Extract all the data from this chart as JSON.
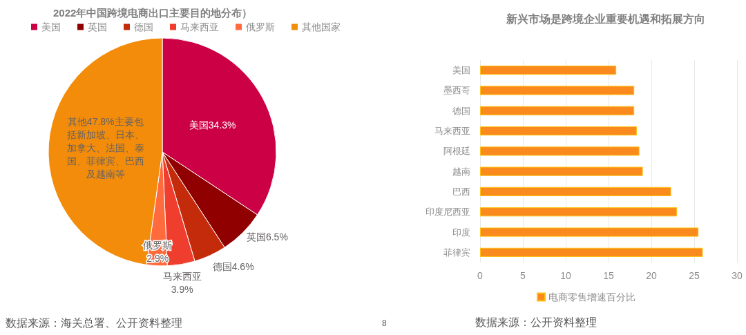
{
  "chart_data": [
    {
      "type": "pie",
      "title": "2022年中国跨境电商出口主要目的地分布）",
      "categories": [
        "美国",
        "英国",
        "德国",
        "马来西亚",
        "俄罗斯",
        "其他国家"
      ],
      "values": [
        34.3,
        6.5,
        4.6,
        3.9,
        2.9,
        47.8
      ],
      "colors": [
        "#cc0044",
        "#900000",
        "#c42b0b",
        "#ef3e2e",
        "#ff6b3d",
        "#f28c0a"
      ],
      "value_labels": [
        "美国34.3%",
        "英国6.5%",
        "德国4.6%",
        "马来西亚3.9%",
        "俄罗斯2.9%",
        "其他47.8%主要包括新加坡、日本、加拿大、法国、泰国、菲律宾、巴西及越南等"
      ],
      "legend": "top",
      "annotations": [
        "数据来源：海关总署、公开资料整理",
        "8"
      ]
    },
    {
      "type": "bar",
      "orientation": "horizontal",
      "title": "新兴市场是跨境企业重要机遇和拓展方向",
      "categories": [
        "美国",
        "墨西哥",
        "德国",
        "马来西亚",
        "阿根廷",
        "越南",
        "巴西",
        "印度尼西亚",
        "印度",
        "菲律宾"
      ],
      "series": [
        {
          "name": "电商零售增速百分比",
          "color": "#fa8a1e",
          "values": [
            15.9,
            18.0,
            18.0,
            18.3,
            18.6,
            19.0,
            22.3,
            23.0,
            25.5,
            26.0
          ]
        }
      ],
      "xlim": [
        0,
        30
      ],
      "xticks": [
        0,
        5,
        10,
        15,
        20,
        25,
        30
      ],
      "grid": "x",
      "legend": "bottom",
      "annotations": [
        "数据来源：公开资料整理"
      ]
    }
  ]
}
